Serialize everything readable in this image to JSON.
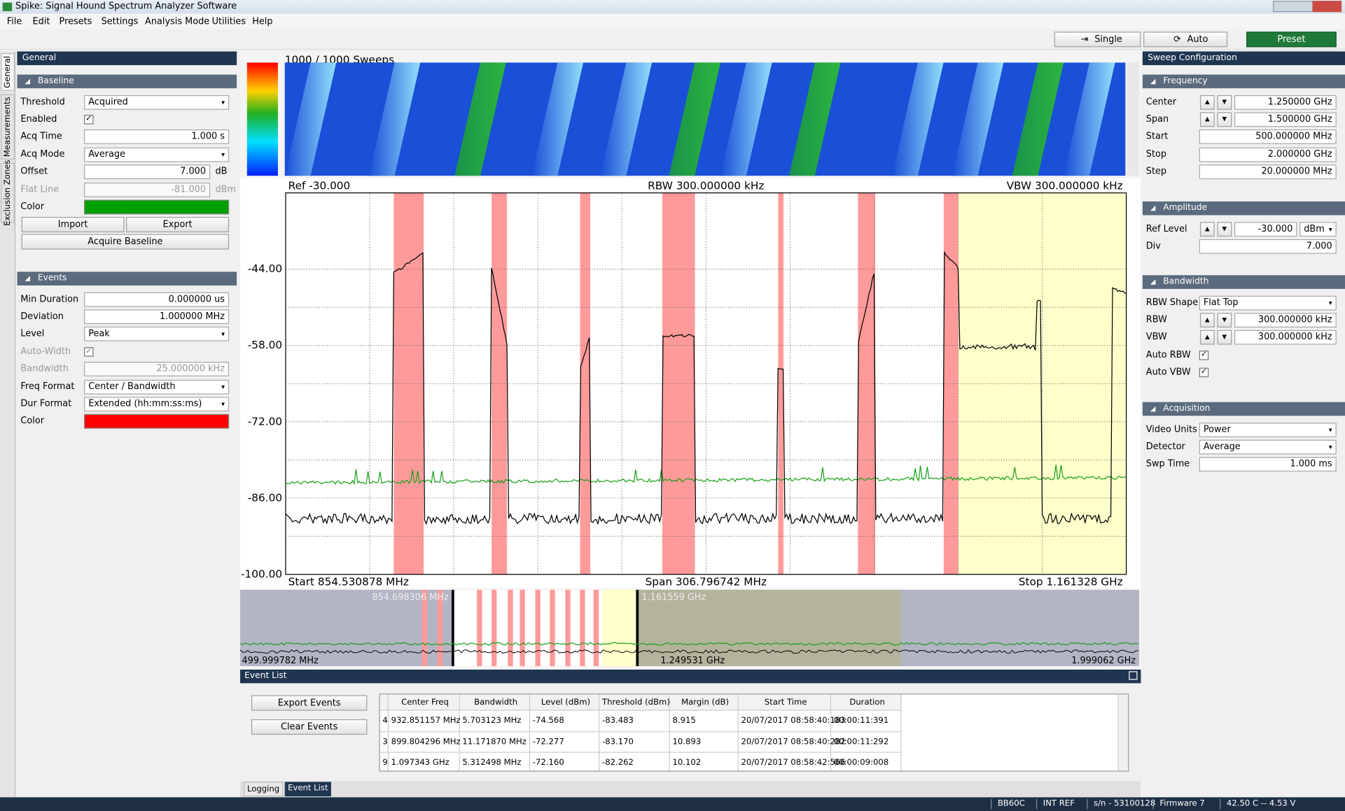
{
  "window": {
    "title": "Spike: Signal Hound Spectrum Analyzer Software"
  },
  "menu": [
    "File",
    "Edit",
    "Presets",
    "Settings",
    "Analysis Mode",
    "Utilities",
    "Help"
  ],
  "toolbar": {
    "single": "Single",
    "auto": "Auto",
    "preset": "Preset"
  },
  "side_tabs": [
    "General",
    "Measurements",
    "Exclusion Zones"
  ],
  "left_panel": {
    "title": "General",
    "sections": [
      {
        "header": "Baseline",
        "rows": [
          {
            "label": "Threshold",
            "value": "Acquired",
            "control": "dropdown"
          },
          {
            "label": "Enabled",
            "control": "checkbox",
            "checked": true
          },
          {
            "label": "Acq Time",
            "value": "1.000 s",
            "control": "text"
          },
          {
            "label": "Acq Mode",
            "value": "Average",
            "control": "dropdown"
          },
          {
            "label": "Offset",
            "value": "7.000",
            "unit": "dB",
            "control": "text"
          },
          {
            "label": "Flat Line",
            "value": "-81.000",
            "unit": "dBm",
            "control": "text",
            "disabled": true
          },
          {
            "label": "Color",
            "control": "color",
            "color": "#00a000"
          }
        ],
        "buttons": [
          "Import",
          "Export",
          "Acquire Baseline"
        ]
      },
      {
        "header": "Events",
        "rows": [
          {
            "label": "Min Duration",
            "value": "0.000000 us",
            "control": "text"
          },
          {
            "label": "Deviation",
            "value": "1.000000 MHz",
            "control": "text"
          },
          {
            "label": "Level",
            "value": "Peak",
            "control": "dropdown"
          },
          {
            "label": "Auto-Width",
            "control": "checkbox",
            "checked": true,
            "disabled": true
          },
          {
            "label": "Bandwidth",
            "value": "25.000000 kHz",
            "control": "text",
            "disabled": true
          },
          {
            "label": "Freq Format",
            "value": "Center / Bandwidth",
            "control": "dropdown"
          },
          {
            "label": "Dur Format",
            "value": "Extended (hh:mm:ss:ms)",
            "control": "dropdown"
          },
          {
            "label": "Color",
            "control": "color",
            "color": "#ff0000"
          }
        ]
      }
    ]
  },
  "right_panel": {
    "title": "Sweep Configuration",
    "sections": [
      {
        "header": "Frequency",
        "rows": [
          {
            "label": "Center",
            "value": "1.250000 GHz",
            "control": "spin"
          },
          {
            "label": "Span",
            "value": "1.500000 GHz",
            "control": "spin"
          },
          {
            "label": "Start",
            "value": "500.000000 MHz",
            "control": "text"
          },
          {
            "label": "Stop",
            "value": "2.000000 GHz",
            "control": "text"
          },
          {
            "label": "Step",
            "value": "20.000000 MHz",
            "control": "text"
          }
        ]
      },
      {
        "header": "Amplitude",
        "rows": [
          {
            "label": "Ref Level",
            "value": "-30.000",
            "unit": "dBm",
            "control": "spin"
          },
          {
            "label": "Div",
            "value": "7.000",
            "control": "text"
          }
        ]
      },
      {
        "header": "Bandwidth",
        "rows": [
          {
            "label": "RBW Shape",
            "value": "Flat Top",
            "control": "dropdown"
          },
          {
            "label": "RBW",
            "value": "300.000000 kHz",
            "control": "spin"
          },
          {
            "label": "VBW",
            "value": "300.000000 kHz",
            "control": "spin"
          },
          {
            "label": "Auto RBW",
            "control": "checkbox",
            "checked": true
          },
          {
            "label": "Auto VBW",
            "control": "checkbox",
            "checked": true
          }
        ]
      },
      {
        "header": "Acquisition",
        "rows": [
          {
            "label": "Video Units",
            "value": "Power",
            "control": "dropdown"
          },
          {
            "label": "Detector",
            "value": "Average",
            "control": "dropdown"
          },
          {
            "label": "Swp Time",
            "value": "1.000 ms",
            "control": "text"
          }
        ]
      }
    ]
  },
  "waterfall": {
    "title": "1000 / 1000 Sweeps"
  },
  "chart_data": {
    "type": "spectrum",
    "ref": "Ref -30.000",
    "rbw": "RBW 300.000000 kHz",
    "vbw": "VBW 300.000000 kHz",
    "start": "Start 854.530878 MHz",
    "span": "Span 306.796742 MHz",
    "stop": "Stop 1.161328 GHz",
    "xlim": [
      854.530878,
      1161.328
    ],
    "ylim": [
      -100,
      -30
    ],
    "yticks": [
      {
        "value": -44,
        "label": "-44.00"
      },
      {
        "value": -58,
        "label": "-58.00"
      },
      {
        "value": -72,
        "label": "-72.00"
      },
      {
        "value": -86,
        "label": "-86.00"
      },
      {
        "value": -100,
        "label": "-100.00"
      }
    ],
    "grid": true,
    "event_zones": [
      {
        "start": 894.0,
        "end": 904.9
      },
      {
        "start": 929.7,
        "end": 935.3
      },
      {
        "start": 962.0,
        "end": 965.7
      },
      {
        "start": 992.0,
        "end": 1003.9
      },
      {
        "start": 1034.3,
        "end": 1036.2
      },
      {
        "start": 1063.4,
        "end": 1069.7
      },
      {
        "start": 1094.7,
        "end": 1100.0
      }
    ],
    "event_color": "#ff9a9a",
    "exclusion_zone": {
      "start": 1100.0,
      "end": 1161.328
    },
    "exclusion_color": "#ffffcc",
    "trace_color": "#000000",
    "baseline_color": "#1aa01a"
  },
  "overview": {
    "sel_start": "854.698306 MHz",
    "sel_stop": "1.161559 GHz",
    "min": "499.999782 MHz",
    "center": "1.249531 GHz",
    "max": "1.999062 GHz"
  },
  "event_list": {
    "title": "Event List",
    "buttons": [
      "Export Events",
      "Clear Events"
    ],
    "columns": [
      "Center Freq",
      "Bandwidth",
      "Level (dBm)",
      "Threshold (dBm)",
      "Margin (dB)",
      "Start Time",
      "Duration"
    ],
    "rows": [
      [
        "4",
        "932.851157 MHz",
        "5.703123 MHz",
        "-74.568",
        "-83.483",
        "8.915",
        "20/07/2017 08:58:40:183",
        "00:00:11:391"
      ],
      [
        "3",
        "899.804296 MHz",
        "11.171870 MHz",
        "-72.277",
        "-83.170",
        "10.893",
        "20/07/2017 08:58:40:282",
        "00:00:11:292"
      ],
      [
        "9",
        "1.097343 GHz",
        "5.312498 MHz",
        "-72.160",
        "-82.262",
        "10.102",
        "20/07/2017 08:58:42:566",
        "00:00:09:008"
      ]
    ]
  },
  "bottom_tabs": [
    "Logging",
    "Event List"
  ],
  "status": [
    "BB60C",
    "INT REF",
    "s/n - 53100128",
    "Firmware 7",
    "42.50 C -- 4.53 V"
  ]
}
